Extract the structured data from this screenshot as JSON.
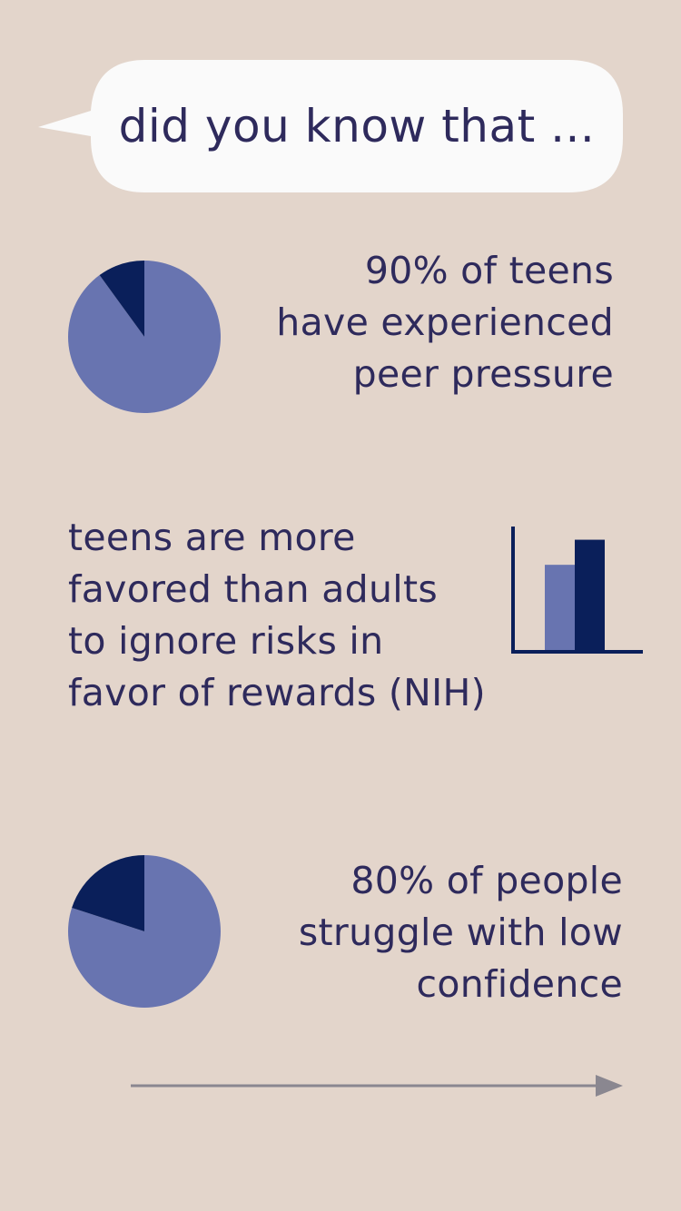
{
  "header": {
    "bubble_text": "did you know that ..."
  },
  "stats": [
    {
      "lines": [
        "90% of teens",
        "have experienced",
        "peer pressure"
      ]
    },
    {
      "lines": [
        "teens are more",
        "favored than adults",
        "to ignore risks in",
        "favor of rewards (NIH)"
      ]
    },
    {
      "lines": [
        "80% of people",
        "struggle with low",
        "confidence"
      ]
    }
  ],
  "colors": {
    "background": "#e3d5cb",
    "text": "#2e2a5c",
    "bubble": "#fafafa",
    "light_slice": "#6874b0",
    "dark_slice": "#0a1f5a",
    "arrow": "#8a8790"
  },
  "chart_data": [
    {
      "type": "pie",
      "values": [
        90,
        10
      ]
    },
    {
      "type": "bar",
      "values": [
        0.68,
        0.88
      ]
    },
    {
      "type": "pie",
      "values": [
        80,
        20
      ]
    }
  ],
  "navigation": {
    "next_icon": "arrow-right-icon"
  }
}
